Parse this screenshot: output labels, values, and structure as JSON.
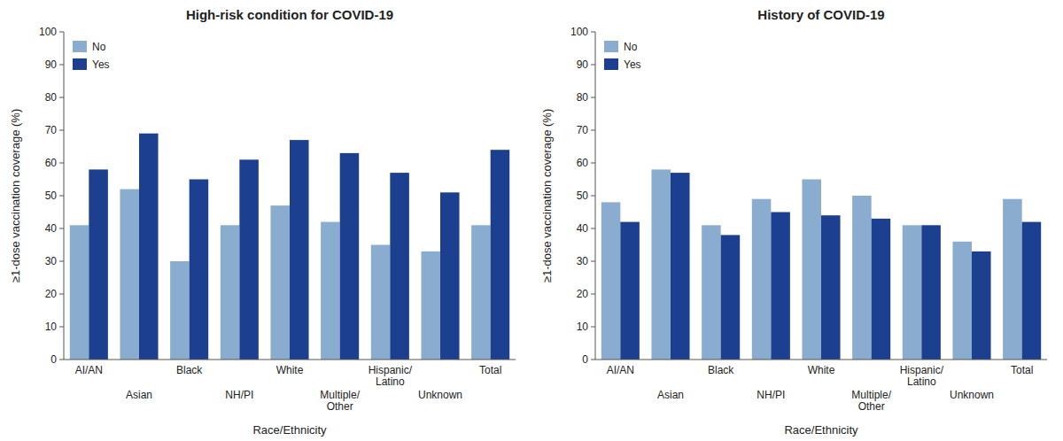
{
  "chart_data": [
    {
      "type": "bar",
      "title": "High-risk condition for COVID-19",
      "xlabel": "Race/Ethnicity",
      "ylabel": "≥1-dose vaccination coverage (%)",
      "categories": [
        "AI/AN",
        "Asian",
        "Black",
        "NH/PI",
        "White",
        "Multiple/\nOther",
        "Hispanic/\nLatino",
        "Unknown",
        "Total"
      ],
      "series": [
        {
          "name": "No",
          "color": "#8aadcf",
          "values": [
            41,
            52,
            30,
            41,
            47,
            42,
            35,
            33,
            41
          ]
        },
        {
          "name": "Yes",
          "color": "#1c3f8f",
          "values": [
            58,
            69,
            55,
            61,
            67,
            63,
            57,
            51,
            64
          ]
        }
      ],
      "ylim": [
        0,
        100
      ],
      "yticks": [
        0,
        10,
        20,
        30,
        40,
        50,
        60,
        70,
        80,
        90,
        100
      ],
      "grid": false,
      "legend": "upper left"
    },
    {
      "type": "bar",
      "title": "History of COVID-19",
      "xlabel": "Race/Ethnicity",
      "ylabel": "≥1-dose vaccination coverage (%)",
      "categories": [
        "AI/AN",
        "Asian",
        "Black",
        "NH/PI",
        "White",
        "Multiple/\nOther",
        "Hispanic/\nLatino",
        "Unknown",
        "Total"
      ],
      "series": [
        {
          "name": "No",
          "color": "#8aadcf",
          "values": [
            48,
            58,
            41,
            49,
            55,
            50,
            41,
            36,
            49
          ]
        },
        {
          "name": "Yes",
          "color": "#1c3f8f",
          "values": [
            42,
            57,
            38,
            45,
            44,
            43,
            41,
            33,
            42
          ]
        }
      ],
      "ylim": [
        0,
        100
      ],
      "yticks": [
        0,
        10,
        20,
        30,
        40,
        50,
        60,
        70,
        80,
        90,
        100
      ],
      "grid": false,
      "legend": "upper left"
    }
  ]
}
